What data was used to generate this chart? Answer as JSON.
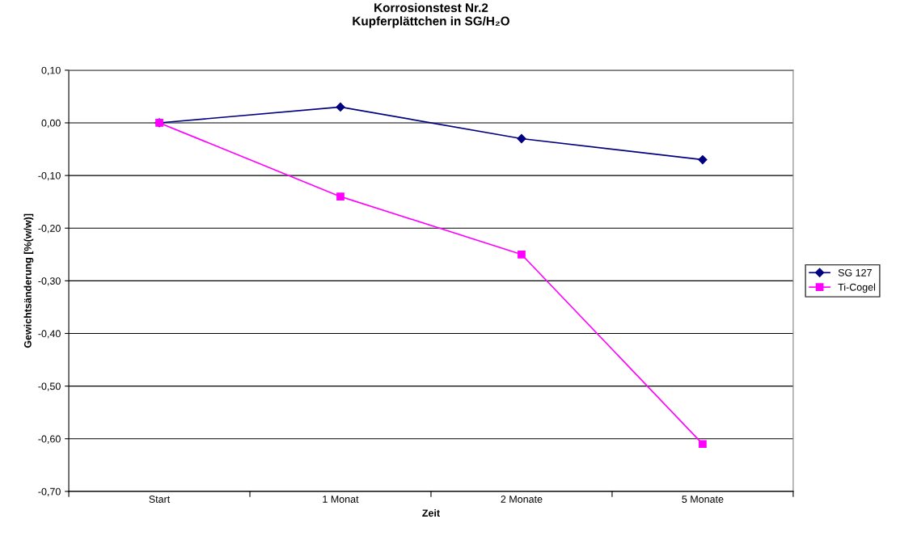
{
  "chart_data": {
    "type": "line",
    "title": "Korrosionstest Nr.2\nKupferplättchen in SG/H₂O",
    "xlabel": "Zeit",
    "ylabel": "Gewichtsänderung [%(w/w)]",
    "categories": [
      "Start",
      "1 Monat",
      "2 Monate",
      "5 Monate"
    ],
    "series": [
      {
        "name": "SG 127",
        "color": "#000080",
        "marker": "diamond",
        "values": [
          0.0,
          0.03,
          -0.03,
          -0.07
        ]
      },
      {
        "name": "Ti-Cogel",
        "color": "#ff00ff",
        "marker": "square",
        "values": [
          0.0,
          -0.14,
          -0.25,
          -0.61
        ]
      }
    ],
    "ylim": [
      -0.7,
      0.1
    ],
    "yticks": [
      {
        "value": -0.7,
        "label": "-0,70"
      },
      {
        "value": -0.6,
        "label": "-0,60"
      },
      {
        "value": -0.5,
        "label": "-0,50"
      },
      {
        "value": -0.4,
        "label": "-0,40"
      },
      {
        "value": -0.3,
        "label": "-0,30"
      },
      {
        "value": -0.2,
        "label": "-0,20"
      },
      {
        "value": -0.1,
        "label": "-0,10"
      },
      {
        "value": 0.0,
        "label": "0,00"
      },
      {
        "value": 0.1,
        "label": "0,10"
      }
    ],
    "grid": "y",
    "legend": "right",
    "line_style": "solid"
  }
}
